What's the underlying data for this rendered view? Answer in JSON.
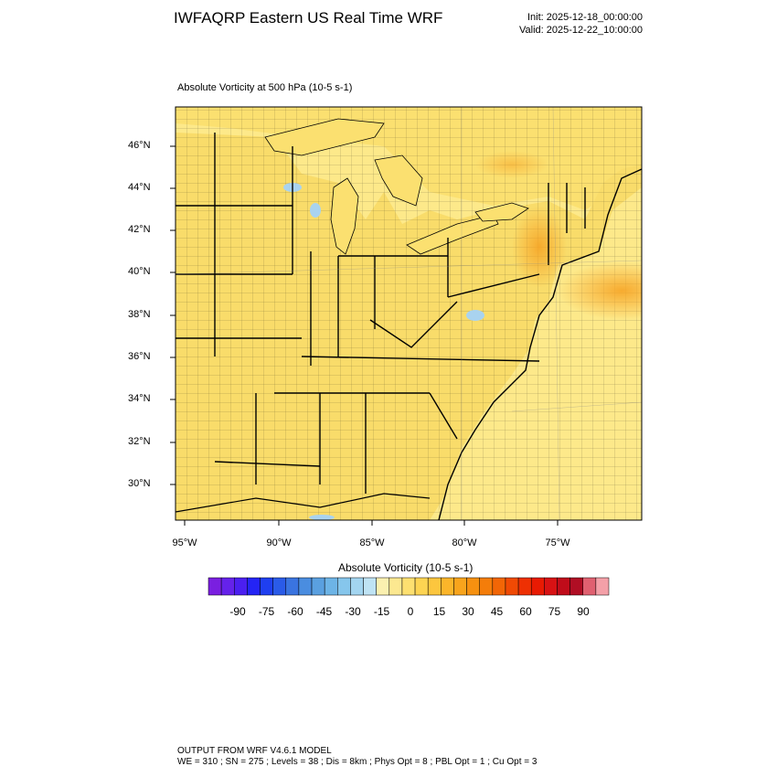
{
  "header": {
    "title": "IWFAQRP Eastern US Real Time WRF",
    "init": "Init: 2025-12-18_00:00:00",
    "valid": "Valid: 2025-12-22_10:00:00"
  },
  "field_label": "Absolute Vorticity at 500 hPa   (10-5 s-1)",
  "map": {
    "lat_labels": [
      "46°N",
      "44°N",
      "42°N",
      "40°N",
      "38°N",
      "36°N",
      "34°N",
      "32°N",
      "30°N"
    ],
    "lon_labels": [
      "95°W",
      "90°W",
      "85°W",
      "80°W",
      "75°W"
    ],
    "colors": {
      "land_fill": "#f9dc6a",
      "ocean_fill": "#fde98a",
      "high_vort": "#f8b640",
      "lake_fill": "#a9d3ef",
      "border": "#000000"
    }
  },
  "colorbar": {
    "title": "Absolute Vorticity  (10-5 s-1)",
    "labels": [
      "-90",
      "-75",
      "-60",
      "-45",
      "-30",
      "-15",
      "0",
      "15",
      "30",
      "45",
      "60",
      "75",
      "90"
    ],
    "colors": [
      "#7a1fe0",
      "#6522ea",
      "#4b1ff0",
      "#2424f5",
      "#1f3ff0",
      "#2a5be8",
      "#3a74e0",
      "#4a8de0",
      "#5aa0e0",
      "#6db4e6",
      "#86c6ec",
      "#a3d5f0",
      "#bfe3f4",
      "#fbf0b0",
      "#fce890",
      "#fde070",
      "#fdd452",
      "#fcc63e",
      "#fbb52a",
      "#f8a41c",
      "#f69110",
      "#f47d0a",
      "#f26606",
      "#f04a04",
      "#ee3003",
      "#e81a03",
      "#d81214",
      "#c00c1a",
      "#b00e24",
      "#e06070",
      "#f4a0a8"
    ]
  },
  "footer": {
    "line1": "OUTPUT FROM WRF V4.6.1 MODEL",
    "line2": "WE = 310 ; SN = 275 ; Levels = 38 ; Dis = 8km ; Phys Opt = 8 ; PBL Opt = 1 ; Cu Opt = 3"
  }
}
